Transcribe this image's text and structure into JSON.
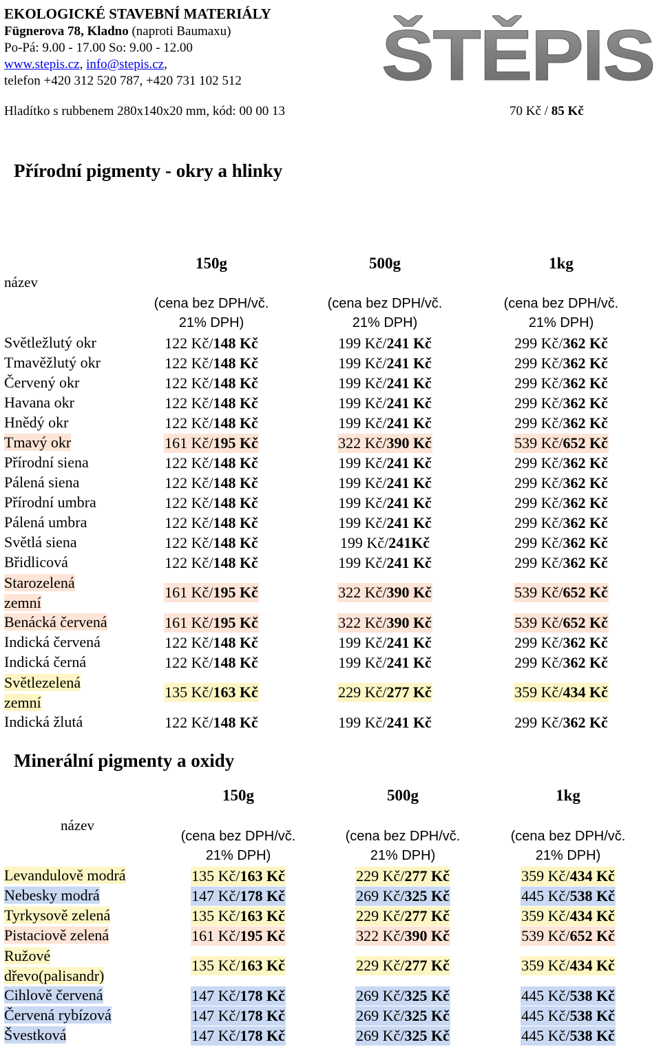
{
  "header": {
    "company": "EKOLOGICKÉ STAVEBNÍ MATERIÁLY",
    "address_bold": "Fügnerova 78, Kladno",
    "address_rest": " (naproti Baumaxu)",
    "hours": "Po-Pá: 9.00 - 17.00   So: 9.00 - 12.00",
    "website": "www.stepis.cz",
    "email": "info@stepis.cz",
    "links_sep": ", ",
    "links_end": ",",
    "phone": "telefon +420 312 520 787, +420 731 102 512",
    "logo_text": "ŠTĚPIS"
  },
  "product": {
    "name": "Hladítko s rubbenem 280x140x20 mm, kód: 00 00 13",
    "price_net": "70 Kč",
    "price_sep": " / ",
    "price_gross": "85 Kč"
  },
  "section1": {
    "title": "Přírodní pigmenty - okry a hlinky",
    "col_name": "název",
    "cols": [
      "150g",
      "500g",
      "1kg"
    ],
    "sub_line1": "(cena bez DPH/vč.",
    "sub_line2": "21% DPH)",
    "rows": [
      {
        "name": "Světležlutý okr",
        "p": [
          [
            "122 Kč/",
            "148 Kč"
          ],
          [
            "199 Kč/",
            "241 Kč"
          ],
          [
            "299 Kč/",
            "362 Kč"
          ]
        ],
        "hl": ""
      },
      {
        "name": "Tmavěžlutý okr",
        "p": [
          [
            "122 Kč/",
            "148 Kč"
          ],
          [
            "199 Kč/",
            "241 Kč"
          ],
          [
            "299 Kč/",
            "362 Kč"
          ]
        ],
        "hl": ""
      },
      {
        "name": "Červený okr",
        "p": [
          [
            "122 Kč/",
            "148 Kč"
          ],
          [
            "199 Kč/",
            "241 Kč"
          ],
          [
            "299 Kč/",
            "362 Kč"
          ]
        ],
        "hl": ""
      },
      {
        "name": "Havana okr",
        "p": [
          [
            "122 Kč/",
            "148 Kč"
          ],
          [
            "199 Kč/",
            "241 Kč"
          ],
          [
            "299 Kč/",
            "362 Kč"
          ]
        ],
        "hl": ""
      },
      {
        "name": "Hnědý okr",
        "p": [
          [
            "122 Kč/",
            "148 Kč"
          ],
          [
            "199 Kč/",
            "241 Kč"
          ],
          [
            "299 Kč/",
            "362 Kč"
          ]
        ],
        "hl": ""
      },
      {
        "name": "Tmavý okr",
        "p": [
          [
            "161 Kč/",
            "195 Kč"
          ],
          [
            "322 Kč/",
            "390 Kč"
          ],
          [
            "539 Kč/",
            "652 Kč"
          ]
        ],
        "hl": "peach"
      },
      {
        "name": "Přírodní siena",
        "p": [
          [
            "122 Kč/",
            "148 Kč"
          ],
          [
            "199 Kč/",
            "241 Kč"
          ],
          [
            "299 Kč/",
            "362 Kč"
          ]
        ],
        "hl": ""
      },
      {
        "name": "Pálená siena",
        "p": [
          [
            "122 Kč/",
            "148 Kč"
          ],
          [
            "199 Kč/",
            "241 Kč"
          ],
          [
            "299 Kč/",
            "362 Kč"
          ]
        ],
        "hl": ""
      },
      {
        "name": "Přírodní umbra",
        "p": [
          [
            "122 Kč/",
            "148 Kč"
          ],
          [
            "199 Kč/",
            "241 Kč"
          ],
          [
            "299 Kč/",
            "362 Kč"
          ]
        ],
        "hl": ""
      },
      {
        "name": "Pálená umbra",
        "p": [
          [
            "122 Kč/",
            "148 Kč"
          ],
          [
            "199 Kč/",
            "241 Kč"
          ],
          [
            "299 Kč/",
            "362 Kč"
          ]
        ],
        "hl": ""
      },
      {
        "name": "Světlá siena",
        "p": [
          [
            "122 Kč/",
            "148 Kč"
          ],
          [
            "199 Kč/",
            "241Kč"
          ],
          [
            "299 Kč/",
            "362 Kč"
          ]
        ],
        "hl": ""
      },
      {
        "name": "Břidlicová",
        "p": [
          [
            "122 Kč/",
            "148 Kč"
          ],
          [
            "199 Kč/",
            "241 Kč"
          ],
          [
            "299 Kč/",
            "362 Kč"
          ]
        ],
        "hl": ""
      },
      {
        "name": "Starozelená",
        "name2": "zemní",
        "p": [
          [
            "161 Kč/",
            "195 Kč"
          ],
          [
            "322 Kč/",
            "390 Kč"
          ],
          [
            "539 Kč/",
            "652 Kč"
          ]
        ],
        "hl": "peach"
      },
      {
        "name": "Benácká červená",
        "p": [
          [
            "161 Kč/",
            "195 Kč"
          ],
          [
            "322 Kč/",
            "390 Kč"
          ],
          [
            "539 Kč/",
            "652 Kč"
          ]
        ],
        "hl": "peach"
      },
      {
        "name": "Indická červená",
        "p": [
          [
            "122 Kč/",
            "148 Kč"
          ],
          [
            "199 Kč/",
            "241 Kč"
          ],
          [
            "299 Kč/",
            "362 Kč"
          ]
        ],
        "hl": ""
      },
      {
        "name": "Indická černá",
        "p": [
          [
            "122 Kč/",
            "148 Kč"
          ],
          [
            "199 Kč/",
            "241 Kč"
          ],
          [
            "299 Kč/",
            "362 Kč"
          ]
        ],
        "hl": ""
      },
      {
        "name": "Světlezelená",
        "name2": "zemní",
        "p": [
          [
            "135 Kč/",
            "163 Kč"
          ],
          [
            "229 Kč/",
            "277 Kč"
          ],
          [
            "359 Kč/",
            "434 Kč"
          ]
        ],
        "hl": "yellow"
      },
      {
        "name": "Indická žlutá",
        "p": [
          [
            "122 Kč/",
            "148 Kč"
          ],
          [
            "199 Kč/",
            "241 Kč"
          ],
          [
            "299 Kč/",
            "362 Kč"
          ]
        ],
        "hl": ""
      }
    ]
  },
  "section2": {
    "title": "Minerální pigmenty a oxidy",
    "col_name": "název",
    "cols": [
      "150g",
      "500g",
      "1kg"
    ],
    "sub_line1": "(cena bez DPH/vč.",
    "sub_line2": "21% DPH)",
    "rows": [
      {
        "name": "Levandulově modrá",
        "p": [
          [
            "135 Kč/",
            "163 Kč"
          ],
          [
            "229 Kč/",
            "277 Kč"
          ],
          [
            "359 Kč/",
            "434 Kč"
          ]
        ],
        "hl": "yellow"
      },
      {
        "name": "Nebesky modrá",
        "p": [
          [
            "147 Kč/",
            "178 Kč"
          ],
          [
            "269 Kč/",
            "325 Kč"
          ],
          [
            "445 Kč/",
            "538 Kč"
          ]
        ],
        "hl": "blue"
      },
      {
        "name": "Tyrkysově zelená",
        "p": [
          [
            "135 Kč/",
            "163 Kč"
          ],
          [
            "229 Kč/",
            "277 Kč"
          ],
          [
            "359 Kč/",
            "434 Kč"
          ]
        ],
        "hl": "yellow"
      },
      {
        "name": "Pistaciově zelená",
        "p": [
          [
            "161 Kč/",
            "195 Kč"
          ],
          [
            "322 Kč/",
            "390 Kč"
          ],
          [
            "539 Kč/",
            "652 Kč"
          ]
        ],
        "hl": "peach"
      },
      {
        "name": "Ružové",
        "name2": "dřevo(palisandr)",
        "p": [
          [
            "135 Kč/",
            "163 Kč"
          ],
          [
            "229 Kč/",
            "277 Kč"
          ],
          [
            "359 Kč/",
            "434 Kč"
          ]
        ],
        "hl": "yellow"
      },
      {
        "name": "Cihlově červená",
        "p": [
          [
            "147 Kč/",
            "178 Kč"
          ],
          [
            "269 Kč/",
            "325 Kč"
          ],
          [
            "445 Kč/",
            "538 Kč"
          ]
        ],
        "hl": "blue"
      },
      {
        "name": "Červená rybízová",
        "p": [
          [
            "147 Kč/",
            "178 Kč"
          ],
          [
            "269 Kč/",
            "325 Kč"
          ],
          [
            "445 Kč/",
            "538 Kč"
          ]
        ],
        "hl": "blue"
      },
      {
        "name": "Švestková",
        "p": [
          [
            "147 Kč/",
            "178 Kč"
          ],
          [
            "269 Kč/",
            "325 Kč"
          ],
          [
            "445 Kč/",
            "538 Kč"
          ]
        ],
        "hl": "blue"
      }
    ]
  },
  "colors": {
    "peach": "#fde4d6",
    "yellow": "#fdf6c4",
    "blue": "#c9d9f3",
    "link": "#0000ee",
    "logo": "#8a8a8a"
  }
}
